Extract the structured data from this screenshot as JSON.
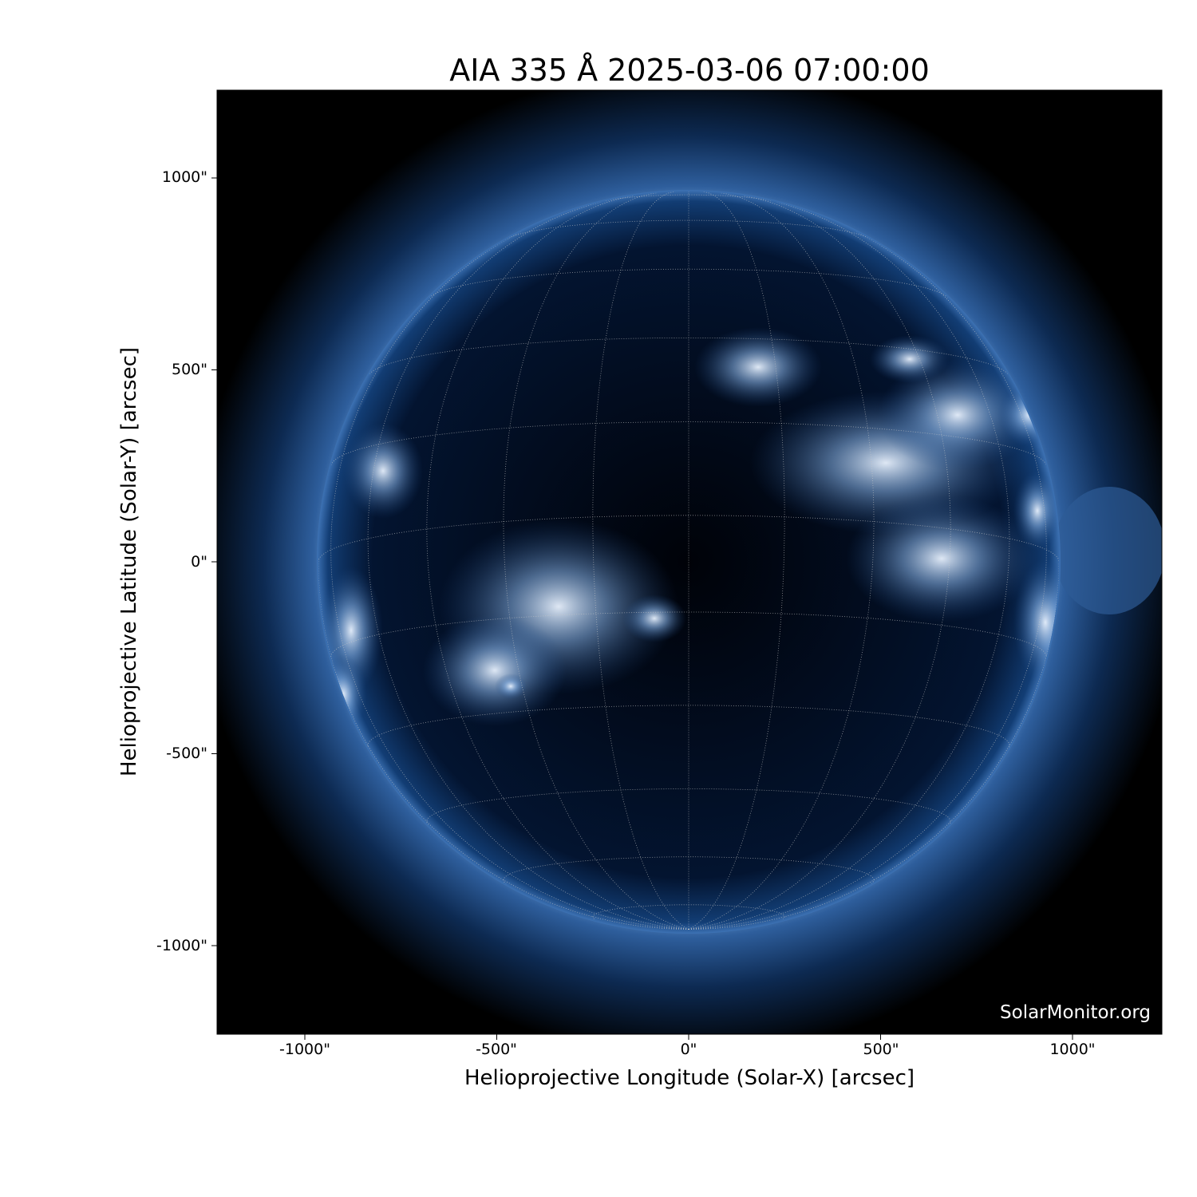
{
  "chart_data": {
    "type": "image",
    "title": "AIA 335 Å 2025-03-06 07:00:00",
    "xlabel": "Helioprojective Longitude (Solar-X) [arcsec]",
    "ylabel": "Helioprojective Latitude (Solar-Y) [arcsec]",
    "xlim": [
      -1230,
      1230
    ],
    "ylim": [
      -1230,
      1230
    ],
    "xticks": [
      -1000,
      -500,
      0,
      500,
      1000
    ],
    "yticks": [
      1000,
      500,
      0,
      -500,
      -1000
    ],
    "xtick_labels": [
      "-1000\"",
      "-500\"",
      "0\"",
      "500\"",
      "1000\""
    ],
    "ytick_labels": [
      "1000\"",
      "500\"",
      "0\"",
      "-500\"",
      "-1000\""
    ],
    "solar_radius_arcsec": 965,
    "grid": "heliographic, 15° spacing, dotted",
    "colormap": "sdoaia335 (black-blue-white)",
    "watermark": "SolarMonitor.org",
    "colors": {
      "background": "#000000",
      "disk": "#0a2a55",
      "corona": "#2b5f9e",
      "bright": "#e8f2ff"
    }
  }
}
